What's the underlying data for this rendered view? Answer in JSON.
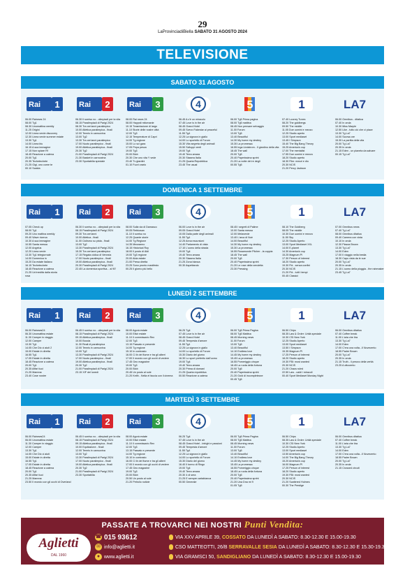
{
  "header": {
    "page_number": "29",
    "paper": "LaProvinciadiBiella",
    "date_line": "SABATO 31 AGOSTO 2024"
  },
  "title": "TELEVISIONE",
  "channels": {
    "rai1": "Rai 1",
    "rai2": "Rai 2",
    "rai3": "Rai 3",
    "rete4": "4",
    "canale5": "5",
    "italia1": "1",
    "la7": "LA7"
  },
  "days": [
    {
      "label": "SABATO 31 AGOSTO",
      "cols": [
        [
          "06.00 Rainews 24",
          "08.00 Tg1",
          "08.30 Unomattina weekly",
          "11.25 Origini",
          "12.00 Linea verde discovery",
          "12.30 Linea verde summer estate",
          "13.30 Tg1",
          "14.00 Linea blu",
          "16.15 A sua immagine",
          "17.15 Non spiare Rf",
          "18.45 Reazione a catena",
          "20.00 Tg1",
          "20.35 Techetechete",
          "21.25 Gigi, uno come te",
          "00.10 Scalda"
        ],
        [
          "06.30 Il sorriso no - olimpiadi per la vita",
          "08.15 Paralimpiadi di Parigi 2024",
          "08.30 Tra cen'anni paralimpico",
          "10.00 Atletica paralimpica - finali",
          "12.00 Tennis in carrozzina",
          "13.00 Tg2",
          "13.30 Tra cen'anni paralimpico",
          "17.00 Nuoto paralimpico - finali",
          "19.00 Atletica paralimpica - finali",
          "20.30 Tg2",
          "21.00 Paralimpiadi di Parigi 2024",
          "21.30 Basket in carrozzina",
          "23.30 Sportabilia speciale"
        ],
        [
          "08.00 Rai news 24",
          "08.00 Haypsit mitomanie",
          "10.15 Trasmissione di largo",
          "11.10 Storie delle nostre città",
          "12.00 Tg3",
          "12.15 Temperature di Capri",
          "14.00 Tg regione",
          "15.00 Lo sci gara",
          "17.05 Pepa pesca",
          "19.00 Tg3",
          "20.00 Blob",
          "20.30 Che uno vita Y vede",
          "23.40 Tv giardini",
          "01.10 Fuori orario"
        ],
        [
          "06.45 A c'è un miracolo",
          "07.45 Love is in the air",
          "08.45 Grand Hotel",
          "09.45 Svevo Fakestar ai peaceful",
          "11.55 Tg4",
          "12.25 La signora in giallo",
          "14.00 Lo sportello di Forum",
          "15.30 Vita segreta degli animali",
          "15.50 Sviluppi venti",
          "19.00 Tg4",
          "19.40 Terra amara",
          "20.30 Stasera Italia",
          "21.25 Quarta Repubblica",
          "23.45 The usual"
        ],
        [
          "06.00 Tg5 Prima pagina",
          "08.00 Tg5 mattina",
          "08.45 Non pensare selvaggio",
          "11.00 Forum",
          "13.00 Tg5",
          "13.40 Beautiful",
          "14.30 My home my destiny",
          "15.30 La promessa",
          "16.55 Inga Lindstrom - Il giardino della vita",
          "18.45 The wall",
          "20.00 Tg5",
          "20.40 Paperissima sprint",
          "21.20 La notte del re degli",
          "00.55 Tg5"
        ],
        [
          "07.40 Looney Tunes",
          "08.20 The goldbergs",
          "09.50 The middle",
          "11.05 Due uomini e mezzo",
          "12.25 Studio aperto",
          "13.00 Sport mediaset",
          "13.45 I Simpson",
          "15.40 The Big Bang Theory",
          "15.25 America's cup",
          "17.00 The mentalist",
          "17.55 Due uomini e mezzo",
          "18.20 Studio aperto",
          "18.30 Film: mezzi e dio",
          "20.30 NCIS",
          "21.20 Percy Jackson"
        ],
        [
          "06.00 Omnibus - ditatica",
          "07.40 In onda",
          "10.30 Miss Marple",
          "12.50 Like - tutto ciò che ci piace",
          "13.30 Tg La7",
          "14.00 Scorsa ore",
          "15.30 La partita della vita",
          "20.00 Tg La7",
          "20.35 In onda",
          "21.15 Eden - un pianeta da salvare",
          "00.15 Tg La7"
        ]
      ]
    },
    {
      "label": "DOMENICA 1 SETTEMBRE",
      "cols": [
        [
          "07.05 Check up",
          "08.00 Tg1",
          "09.20 Uno mattina weekly",
          "09.40 Wave ricerca",
          "10.30 A sua immagine",
          "10.55 Santa messa",
          "12.00 Angelus",
          "12.20 Linea verde",
          "13.30 Tg1 telegiornale",
          "14.00 Domenica in",
          "15.20 Da estate italiano",
          "16.15 Techetechete",
          "18.45 Reazione a catena",
          "21.25 Un'eredità dalla storia",
          "rosa"
        ],
        [
          "06.30 Il sorriso no - olimpiadi per la vita",
          "08.15 Paralimpiadi di Parigi 2024",
          "09.30 Tra cen'anni",
          "10.00 Atletica - finali",
          "11.00 Ciclismo su pista - finali",
          "13.00 Tg2",
          "13.30 Paralimpiadi di Parigi 2024",
          "15.30 Tra cen'anni paralimpico",
          "17.15 Regata ciclica di Venezia",
          "17.00 Nuoto paralimpico - finali",
          "19.00 Atletica paralimpica - finali",
          "20.30 Paralimpiadi di Parigi 2024",
          "22.45 La domenica sportiva... al 90'"
        ],
        [
          "08.00 Sulla via di Damasco",
          "09.05 Rebkosan",
          "11.10 Il sorriso no",
          "12.25 Quante storie",
          "14.00 Tg Regione",
          "14.35 Mezzanno",
          "16.15 Historical Roy",
          "18.00 Il posto di Aldi",
          "19.00 Tg3 regione",
          "20.00 Alda estate",
          "21.00 Presa diretta",
          "23.25 Sono pronto manifesto",
          "00.25 Il giorno più bello"
        ],
        [
          "06.00 Love is in the air",
          "09.05 Grand Hotel",
          "10.05 Dalla parte degli animali",
          "11.55 Tg4",
          "12.25 Anna escursioni",
          "14.40 Parlamento di vista",
          "17.10 L'uomo della strada",
          "19.00 Tg4",
          "19.40 Terra amara",
          "20.30 Stasera Italia",
          "21.25 Zona bianca",
          "00.30 Aspettando"
        ],
        [
          "08.45 I segreti di Palime",
          "10.00 Santa messa",
          "12.00 Melaverde",
          "13.40 L'arca di Noè",
          "14.00 Beautiful",
          "14.30 My home my destiny",
          "15.30 La promessa",
          "16.55 Rosamunde Pilcher - la coppia",
          "18.45 The wall",
          "20.00 Tg5",
          "20.40 Paperissima sprint",
          "21.20 Le rose della vendetta",
          "23.30 Pressing"
        ],
        [
          "08.10 The Goldberg",
          "08.05 The middle",
          "10.30 Due uomini e mezzo",
          "11.50 Sky",
          "12.25 Studio Aperto",
          "13.00 Sport Mediaset XXL",
          "14.00 E-planet",
          "14.30 America's cup",
          "15.25 Magnum PI",
          "17.30 Person of interest",
          "18.20 Studio aperto",
          "19.30 Fbi - senza confini",
          "20.30 NCIS",
          "21.20 Fbi - tutti i tempi",
          "00.45 Classici"
        ],
        [
          "07.00 Omnibus news",
          "07.40 Tg La7",
          "08.00 Omnibus ditatica",
          "09.40 Camera con vista",
          "10.10 In onda",
          "12.30 Piazza Brown",
          "13.30 Tg La7",
          "14.00 Eden",
          "17.00 Il viaggio nella bestia",
          "18.30 Capo vista da le sue",
          "20.00 Tg La7",
          "20.35 In onda",
          "21.15 L'uomo della pioggia - the rainmaker",
          "23.45 Tg La7"
        ]
      ]
    },
    {
      "label": "LUNEDÌ 2 SETTEMBRE",
      "cols": [
        [
          "06.00 Rainews24",
          "06.30 Unomattina estate",
          "11.30 Camper in viaggio",
          "12.00 Camper",
          "13.30 Tg1",
          "14.05 Che Dio ci aiuti 2",
          "15.00 Estate in diretta",
          "16.55 Tg1",
          "17.05 Estate in diretta",
          "18.45 Reazione a catena",
          "20.00 Tg1",
          "20.35 Affari tuoi",
          "21.25 Mamma",
          "23.40 Cose nostre"
        ],
        [
          "06.45 Il sorriso no - olimpiadi per la vita",
          "08.15 Paralimpiadi di Parigi 2024",
          "09.15 Atletica paralimpica - finali",
          "10.00 Boccia",
          "11.30 Reali di paralimpica",
          "12.00 Tennis in carrozzina",
          "13.00 Tg2",
          "13.30 Paralimpiadi di Parigi 2024",
          "17.00 Nuoto paralimpico - finali",
          "19.00 Atletica paralimpica - finali",
          "20.30 Tg2",
          "21.00 Paralimpiadi di Parigi 2024",
          "23.15 XIF del lunedì"
        ],
        [
          "08.00 Agorà estate",
          "10.00 Elisir estate",
          "11.10 Il commissario Rex",
          "12.00 Tg3",
          "13.15 Passato e presente",
          "14.00 Tg regione",
          "15.10 In contrasto",
          "16.00 Ci ib del fiume e tra gli alberi",
          "17.00 Il mondo con gli occhi di vedere",
          "17.45 Geo magazine",
          "19.00 Tg3",
          "20.00 Blob",
          "20.45 Un posto al sole",
          "21.20 Keith - Nella el faccia con il cinema"
        ],
        [
          "06.25 Tg4",
          "07.45 Love is in the air",
          "08.45 Grand Hotel",
          "09.45 Tempesta d'amore",
          "11.55 Tg4",
          "12.25 La signora in giallo",
          "14.00 Lo sportello di Forum",
          "15.30 Diario del giorno",
          "16.30 Lo sport preferito dall'uomo",
          "19.00 Tg4",
          "19.40 Terra amara",
          "20.30 Prima di domani",
          "21.25 Quarta repubblica",
          "00.50 Reazione a catena"
        ],
        [
          "06.00 Tg5 Prima Pagina",
          "08.00 Tg5 Mattina",
          "08.45 Morning news",
          "11.00 Forum",
          "13.00 Tg5",
          "13.40 Beautiful",
          "14.10 Endless love",
          "14.45 My home my destiny",
          "15.45 La promessa",
          "16.55 Pomeriggio cinque",
          "18.45 La ruota della fortuna",
          "20.00 Tg5",
          "20.40 Paperissima sprint",
          "21.20 Gold di incompletezze",
          "00.45 Tg5"
        ],
        [
          "06.50 Chips",
          "08.35 Law & Order: Unità speciale",
          "10.30 CSI New York",
          "12.25 Studio Aperto",
          "13.00 Sport mediaset",
          "13.50 I Simpson",
          "15.35 Magnum PI",
          "17.25 Person of Interest",
          "18.20 Studio aperto",
          "19.30 FBI: most wanted",
          "20.30 NCIS",
          "21.20 Chaos ruled",
          "22.50 Law - caldi i miracoli",
          "00.40 Sport Mediaset Monday Night"
        ],
        [
          "06.00 Omnibus ditatica",
          "07.40 Coffee break",
          "11.00 L'aria che tira",
          "13.30 Tg La7",
          "14.00 Eden",
          "17.00 C'era una volta...Il Novecento",
          "18.55 Padre Brown",
          "20.00 Tg La7",
          "20.35 In onda",
          "21.15 Truth - il prezzo della verità",
          "23.25 A ottocento"
        ]
      ]
    },
    {
      "label": "MARTEDÌ 3 SETTEMBRE",
      "cols": [
        [
          "06.00 Rainews24",
          "06.00 Unomattina estate",
          "11.30 Camper in viaggio",
          "12.00 Camper",
          "13.30 Tg1",
          "14.05 Che Dio ci aiuti",
          "15.00 Estate in diretta",
          "16.55 Tg1",
          "17.05 Estate in diretta",
          "18.45 Reazione a catena",
          "20.00 Tg1",
          "20.35 Affari tuoi",
          "21.25 Mamma",
          "23.50 Il mondo con gli occhi di Overland"
        ],
        [
          "06.45 Il sorriso no - olimpiadi per la vita",
          "08.15 Paralimpiadi di Parigi 2024",
          "09.15 Atletica paralimpica - finali",
          "10.00 Equitazione - finali",
          "12.00 Tennis in carrozzina",
          "13.00 Tg2",
          "13.30 Paralimpiadi di Parigi 2024",
          "17.00 Nuoto paralimpico - finali",
          "19.00 Atletica paralimpica - finali",
          "20.30 Tg2",
          "21.00 Paralimpiadi di Parigi 2024",
          "23.30 Sportabilia"
        ],
        [
          "08.00 Agorà estate",
          "10.00 Elisir estate",
          "11.10 Il commissario Rex",
          "12.00 Tg3",
          "13.15 Passato e presente",
          "14.00 Tg regione",
          "15.10 In contrasto",
          "16.00 Ci ib del fiume e tra gli alberi",
          "17.00 Il mondo con gli occhi di vedere",
          "17.45 Geo magazine",
          "19.00 Tg3",
          "20.00 Blob",
          "20.50 Un posto al sole",
          "21.20 Petrolio notizie"
        ],
        [
          "06.25 Tg4",
          "07.45 Love is in the air",
          "08.45 Grand Hotel - intrighi e passioni",
          "09.45 Tempesta d'amore",
          "11.55 Tg4",
          "12.25 La signora in giallo",
          "14.00 Lo sportello di Forum",
          "15.30 Diario del giorno",
          "16.40 Il tormo di Ringo",
          "19.00 Tg4",
          "19.40 Terra amara",
          "20.30 4 di sera",
          "21.25 E sempre cartabianca",
          "00.50 Generale"
        ],
        [
          "06.00 Tg5 Prima Pagina",
          "08.00 Tg5 Mattina",
          "08.45 Morning news",
          "11.00 Forum",
          "13.00 Tg5",
          "13.40 Beautiful",
          "14.10 Endless love",
          "14.45 My home my destiny",
          "15.45 La promessa",
          "16.55 Pomeriggio cinque",
          "18.45 La ruota della fortuna",
          "20.00 Tg5",
          "20.40 Paperissima sprint",
          "21.20 Una Dna mi 9",
          "01.05 Tg5"
        ],
        [
          "06.50 Chips",
          "08.35 Law & Order: Unità speciale",
          "10.30 CSI New York",
          "12.25 Studio Aperto",
          "13.00 Sport mediaset",
          "13.50 America's cup",
          "14.00 The Big Bang Theory",
          "15.20 America's cup",
          "16.00 Magnum PI",
          "17.25 Person of interest",
          "18.20 Studio aperto",
          "19.30 FBI: most wanted",
          "20.30 NCIS",
          "21.20 Scattered Holmes",
          "00.30 The Prestige"
        ],
        [
          "06.00 Omnibus ditatica",
          "07.40 Coffee break",
          "11.00 L'aria che tira",
          "13.30 Tg La7",
          "14.00 Eden",
          "17.00 C'era una volta...Il Novecento",
          "18.55 Padre Brown",
          "20.00 Tg La7",
          "20.35 In onda",
          "21.15 Crossed circuit"
        ]
      ]
    }
  ],
  "ad": {
    "headline_pre": "PASSATE A TROVARCI NEI NOSTRI",
    "headline_em": "Punti Vendita:",
    "brand": "Aglietti",
    "brand_since": "DAL 1960",
    "phone": "015 93612",
    "email": "info@aglietti.it",
    "web": "www.aglietti.it",
    "stores": [
      {
        "addr": "VIA XXV APRILE 39,",
        "town": "COSSATO",
        "hours": "DA LUNEDÌ A SABATO: 8.30-12.30 E 15.00-19.30"
      },
      {
        "addr": "CSO MATTEOTTI, 26/B",
        "town": "SERRAVALLE SESIA",
        "hours": "DA LUNEDÌ A SABATO: 8.30-12.30 E 15.30-19.30"
      },
      {
        "addr": "VIA GRAMSCI 50,",
        "town": "SANDIGLIANO",
        "hours": "DA LUNEDÌ A SABATO: 8.30-12.30 E 15.00-19.30"
      }
    ]
  },
  "colors": {
    "header_blue": "#0d97d6",
    "panel_blue": "#e8f4fa",
    "rai": "#1f57a8",
    "rai2": "#d8262e",
    "rai3": "#2f9c46",
    "ad_bg": "#7a1e2e",
    "ad_accent": "#f4c842"
  }
}
